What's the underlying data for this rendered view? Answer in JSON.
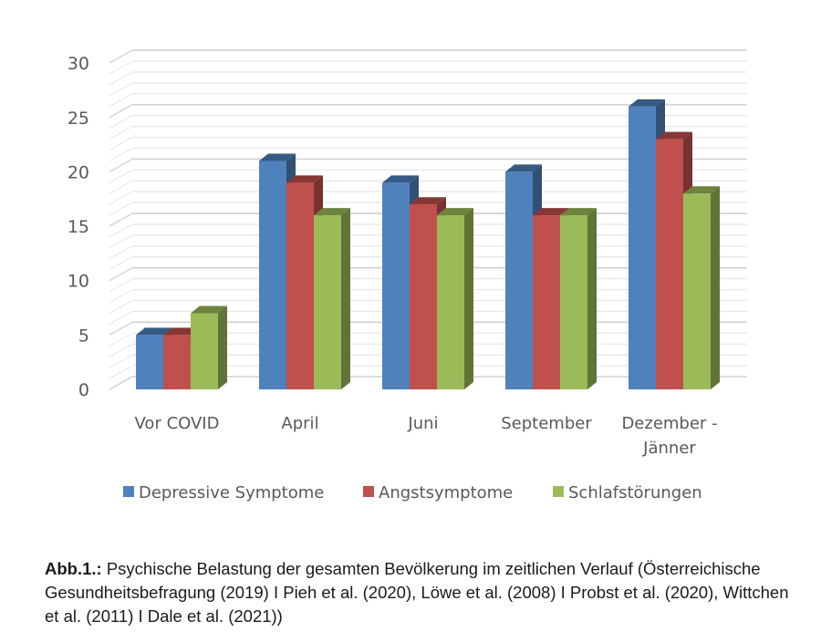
{
  "chart_data": {
    "type": "bar",
    "style": "3d-clustered-column",
    "title": "",
    "xlabel": "",
    "ylabel": "",
    "ylim": [
      0,
      30
    ],
    "yticks": [
      0,
      5,
      10,
      15,
      20,
      25,
      30
    ],
    "minor_grid_step": 1,
    "grid": true,
    "categories": [
      "Vor COVID",
      "April",
      "Juni",
      "September",
      "Dezember - Jänner"
    ],
    "category_lines": [
      [
        "Vor COVID"
      ],
      [
        "April"
      ],
      [
        "Juni"
      ],
      [
        "September"
      ],
      [
        "Dezember -",
        "Jänner"
      ]
    ],
    "series": [
      {
        "name": "Depressive Symptome",
        "color": "#4f81bd",
        "values": [
          5,
          21,
          19,
          20,
          26
        ]
      },
      {
        "name": "Angstsymptome",
        "color": "#c0504d",
        "values": [
          5,
          19,
          17,
          16,
          23
        ]
      },
      {
        "name": "Schlafstörungen",
        "color": "#9bbb59",
        "values": [
          7,
          16,
          16,
          16,
          18
        ]
      }
    ],
    "legend_position": "bottom"
  },
  "caption": {
    "label": "Abb.1.:",
    "text": " Psychische Belastung der gesamten Bevölkerung im zeitlichen Verlauf (Österreichische Gesundheitsbefragung (2019) I Pieh et al. (2020), Löwe et al. (2008) I Probst et al. (2020), Wittchen et al. (2011) I Dale et al. (2021))"
  }
}
